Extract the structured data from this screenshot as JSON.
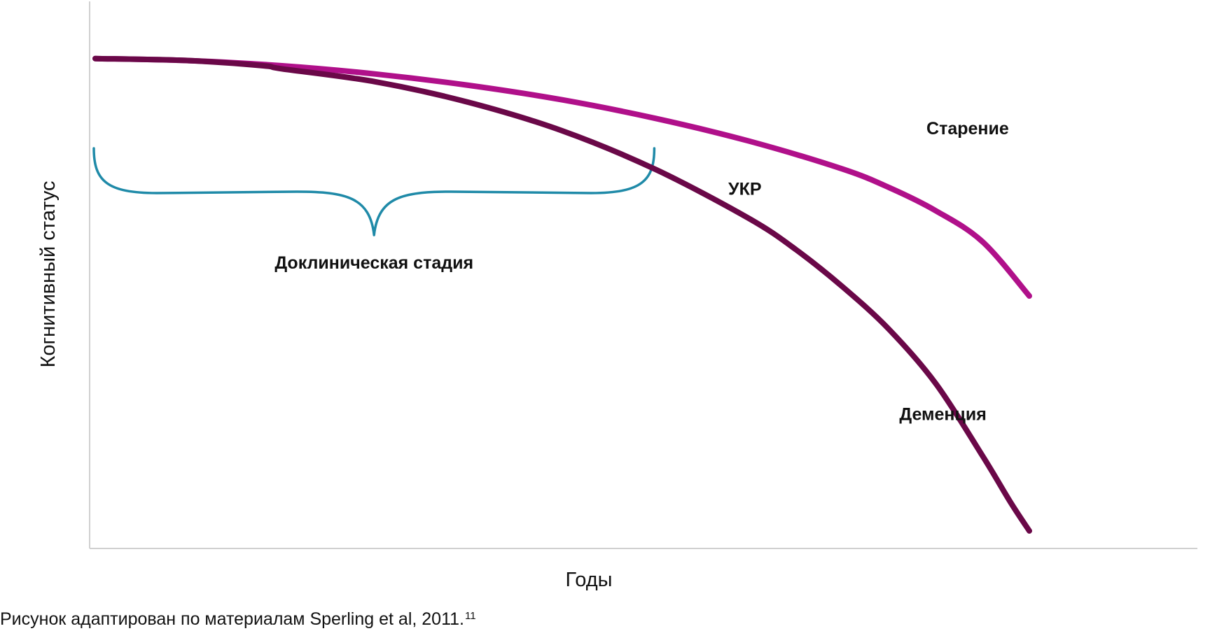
{
  "chart_data": {
    "type": "line",
    "title": "",
    "xlabel": "Годы",
    "ylabel": "Когнитивный статус",
    "xlim": [
      0,
      100
    ],
    "ylim": [
      0,
      100
    ],
    "grid": false,
    "series": [
      {
        "name": "Старение",
        "color": "#b0108a",
        "x": [
          0,
          10,
          20,
          30,
          40,
          50,
          60,
          70,
          80,
          85,
          90,
          95,
          100
        ],
        "y": [
          93,
          92.6,
          91.6,
          90,
          87.8,
          85,
          81.4,
          77,
          71.6,
          68,
          63.5,
          57.5,
          47
        ]
      },
      {
        "name": "Деменция",
        "color": "#6a0848",
        "x": [
          0,
          10,
          18,
          20,
          30,
          40,
          50,
          60,
          70,
          75,
          80,
          85,
          90,
          95,
          98,
          100
        ],
        "y": [
          93,
          92.6,
          91.6,
          91,
          88.5,
          84.5,
          79,
          71.5,
          62,
          56,
          48.8,
          40.5,
          30,
          16,
          7,
          1.5
        ]
      }
    ],
    "annotations": [
      {
        "id": "ukr",
        "text": "УКР",
        "x": 70,
        "y": 62
      },
      {
        "id": "dementia",
        "text": "Деменция",
        "x": 90,
        "y": 30
      },
      {
        "id": "aging",
        "text": "Старение",
        "x": 85,
        "y": 68
      }
    ],
    "brace": {
      "label": "Доклиническая стадия",
      "x_start": 0,
      "x_end": 60,
      "color": "#1f8aa8"
    }
  },
  "caption": {
    "text": "Рисунок адаптирован по материалам Sperling et al, 2011.",
    "superscript": "11"
  }
}
